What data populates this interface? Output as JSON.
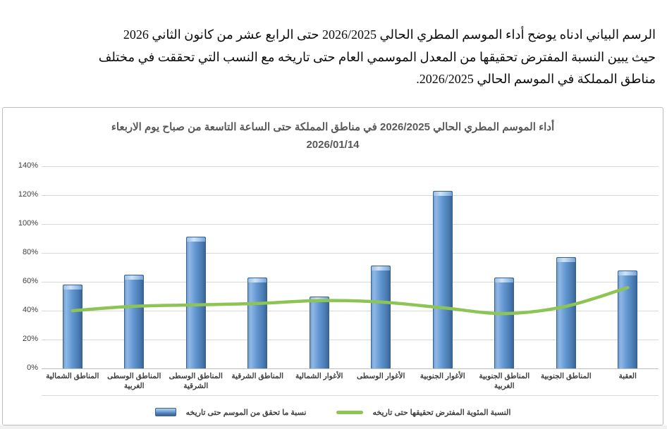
{
  "intro": {
    "lines": [
      "الرسم البياني ادناه يوضح أداء الموسم المطري الحالي 2026/2025 حتى الرابع عشر من كانون الثاني 2026",
      "حيث يبين النسبة المفترض تحقيقها من المعدل الموسمي العام حتى تاريخه مع النسب التي تحققت في مختلف",
      "مناطق المملكة في الموسم الحالي 2026/2025."
    ]
  },
  "chart_data": {
    "type": "bar",
    "subtype": "bar-and-line-combo",
    "title": "أداء الموسم المطري الحالي 2026/2025 في مناطق المملكة حتى الساعة التاسعة من صباح يوم الاربعاء 2026/01/14",
    "title_line1": "أداء الموسم المطري الحالي 2026/2025 في مناطق المملكة حتى الساعة التاسعة من صباح يوم الاربعاء",
    "title_line2": "2026/01/14",
    "categories": [
      "المناطق الشمالية",
      "المناطق الوسطى الغربية",
      "المناطق الوسطى الشرقية",
      "المناطق الشرقية",
      "الأغوار الشمالية",
      "الأغوار الوسطى",
      "الأغوار الجنوبية",
      "المناطق الجنوبية الغربية",
      "المناطق الجنوبية",
      "العقبة"
    ],
    "series": [
      {
        "name": "نسبة ما تحقق من الموسم حتى تاريخه",
        "type": "bar",
        "color": "#5b8bc9",
        "values": [
          58,
          65,
          91,
          63,
          50,
          71,
          123,
          63,
          77,
          68
        ]
      },
      {
        "name": "النسبة المئوية المفترض تحقيقها حتى تاريخه",
        "type": "line",
        "color": "#8dc554",
        "values": [
          40,
          43,
          44,
          45,
          47,
          46,
          42,
          38,
          43,
          56
        ]
      }
    ],
    "xlabel": "",
    "ylabel": "",
    "ylim": [
      0,
      140
    ],
    "y_ticks": [
      "0%",
      "20%",
      "40%",
      "60%",
      "80%",
      "100%",
      "120%",
      "140%"
    ],
    "grid": true,
    "legend_position": "bottom",
    "colors": {
      "grid": "#d9d9d9",
      "title": "#595959",
      "axis_text": "#404040",
      "bar_edge": "#36608e"
    }
  }
}
